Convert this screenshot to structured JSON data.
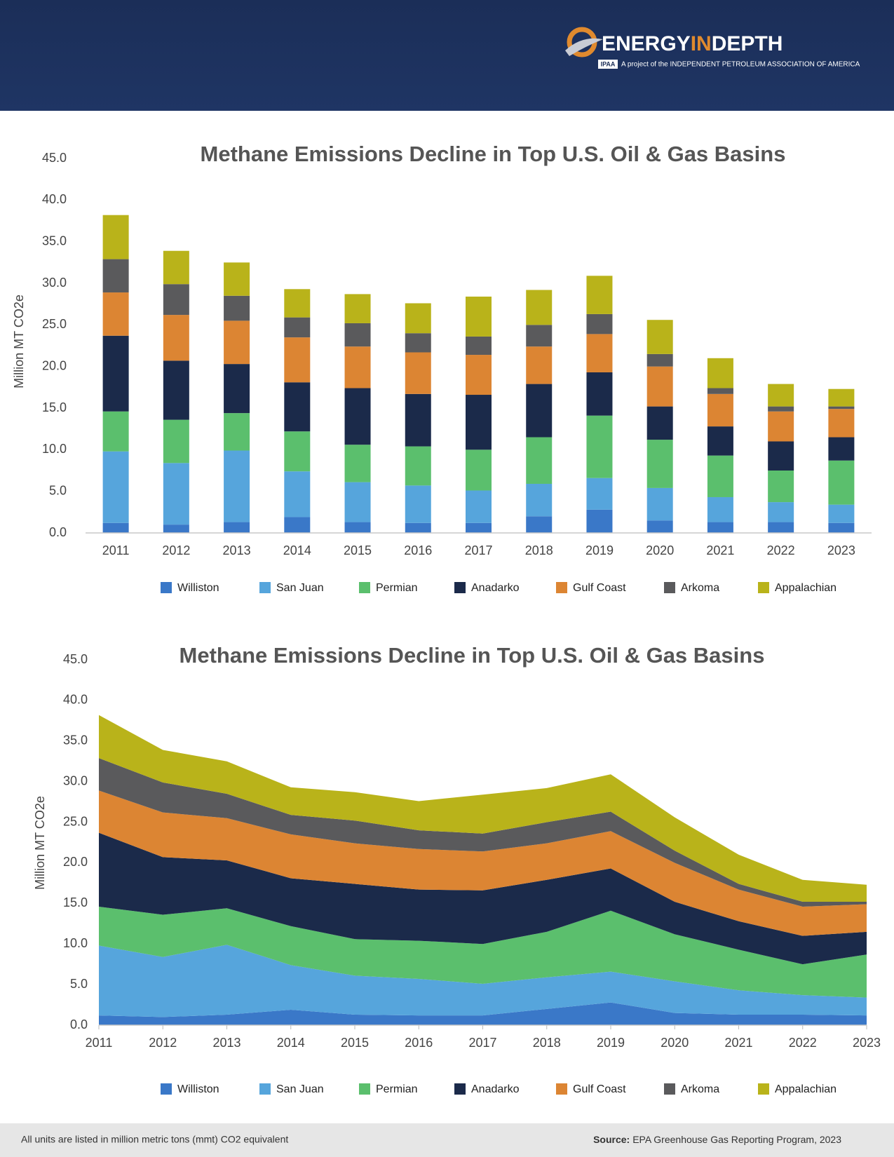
{
  "header": {
    "logo": [
      "ENERGY",
      "IN",
      "DEPTH"
    ],
    "tagline": "A project of the INDEPENDENT PETROLEUM ASSOCIATION OF AMERICA",
    "badge": "IPAA"
  },
  "chart_data": [
    {
      "type": "bar",
      "title": "Methane Emissions Decline in Top U.S. Oil & Gas Basins",
      "y_label": "Million MT CO2e",
      "categories": [
        "2011",
        "2012",
        "2013",
        "2014",
        "2015",
        "2016",
        "2017",
        "2018",
        "2019",
        "2020",
        "2021",
        "2022",
        "2023"
      ],
      "series": [
        {
          "name": "Williston",
          "color": "#3a78c8",
          "values": [
            1.2,
            1.0,
            1.3,
            1.9,
            1.3,
            1.2,
            1.2,
            2.0,
            2.8,
            1.5,
            1.3,
            1.3,
            1.2
          ]
        },
        {
          "name": "San Juan",
          "color": "#56a5dc",
          "values": [
            8.6,
            7.4,
            8.6,
            5.5,
            4.8,
            4.5,
            3.9,
            3.9,
            3.8,
            3.9,
            3.0,
            2.4,
            2.2
          ]
        },
        {
          "name": "Permian",
          "color": "#5bbf6d",
          "values": [
            4.8,
            5.2,
            4.5,
            4.8,
            4.5,
            4.7,
            4.9,
            5.6,
            7.5,
            5.8,
            5.0,
            3.8,
            5.3
          ]
        },
        {
          "name": "Anadarko",
          "color": "#1b2a4a",
          "values": [
            9.1,
            7.1,
            5.9,
            5.9,
            6.8,
            6.3,
            6.6,
            6.4,
            5.2,
            4.0,
            3.5,
            3.5,
            2.8
          ]
        },
        {
          "name": "Gulf Coast",
          "color": "#dc8533",
          "values": [
            5.2,
            5.5,
            5.2,
            5.4,
            5.0,
            5.0,
            4.8,
            4.5,
            4.6,
            4.8,
            3.9,
            3.6,
            3.4
          ]
        },
        {
          "name": "Arkoma",
          "color": "#5a5a5c",
          "values": [
            4.0,
            3.7,
            3.0,
            2.4,
            2.8,
            2.3,
            2.2,
            2.6,
            2.4,
            1.5,
            0.7,
            0.6,
            0.3
          ]
        },
        {
          "name": "Appalachian",
          "color": "#b9b31a",
          "values": [
            5.3,
            4.0,
            4.0,
            3.4,
            3.5,
            3.6,
            4.8,
            4.2,
            4.6,
            4.1,
            3.6,
            2.7,
            2.1
          ]
        }
      ],
      "ylim": [
        0,
        45
      ],
      "yticks": [
        {
          "value": 0,
          "label": "0.0"
        },
        {
          "value": 5,
          "label": "5.0"
        },
        {
          "value": 10,
          "label": "10.0"
        },
        {
          "value": 15,
          "label": "15.0"
        },
        {
          "value": 20,
          "label": "20.0"
        },
        {
          "value": 25,
          "label": "25.0"
        },
        {
          "value": 30,
          "label": "30.0"
        },
        {
          "value": 35,
          "label": "35.0"
        },
        {
          "value": 40,
          "label": "40.0"
        },
        {
          "value": 45,
          "label": "45.0"
        }
      ],
      "grid": false,
      "legend": "bottom"
    },
    {
      "type": "area",
      "title": "Methane Emissions Decline in Top U.S. Oil & Gas Basins",
      "y_label": "Million MT CO2e",
      "categories": [
        "2011",
        "2012",
        "2013",
        "2014",
        "2015",
        "2016",
        "2017",
        "2018",
        "2019",
        "2020",
        "2021",
        "2022",
        "2023"
      ],
      "series": [
        {
          "name": "Williston",
          "color": "#3a78c8",
          "values": [
            1.2,
            1.0,
            1.3,
            1.9,
            1.3,
            1.2,
            1.2,
            2.0,
            2.8,
            1.5,
            1.3,
            1.3,
            1.2
          ]
        },
        {
          "name": "San Juan",
          "color": "#56a5dc",
          "values": [
            8.6,
            7.4,
            8.6,
            5.5,
            4.8,
            4.5,
            3.9,
            3.9,
            3.8,
            3.9,
            3.0,
            2.4,
            2.2
          ]
        },
        {
          "name": "Permian",
          "color": "#5bbf6d",
          "values": [
            4.8,
            5.2,
            4.5,
            4.8,
            4.5,
            4.7,
            4.9,
            5.6,
            7.5,
            5.8,
            5.0,
            3.8,
            5.3
          ]
        },
        {
          "name": "Anadarko",
          "color": "#1b2a4a",
          "values": [
            9.1,
            7.1,
            5.9,
            5.9,
            6.8,
            6.3,
            6.6,
            6.4,
            5.2,
            4.0,
            3.5,
            3.5,
            2.8
          ]
        },
        {
          "name": "Gulf Coast",
          "color": "#dc8533",
          "values": [
            5.2,
            5.5,
            5.2,
            5.4,
            5.0,
            5.0,
            4.8,
            4.5,
            4.6,
            4.8,
            3.9,
            3.6,
            3.4
          ]
        },
        {
          "name": "Arkoma",
          "color": "#5a5a5c",
          "values": [
            4.0,
            3.7,
            3.0,
            2.4,
            2.8,
            2.3,
            2.2,
            2.6,
            2.4,
            1.5,
            0.7,
            0.6,
            0.3
          ]
        },
        {
          "name": "Appalachian",
          "color": "#b9b31a",
          "values": [
            5.3,
            4.0,
            4.0,
            3.4,
            3.5,
            3.6,
            4.8,
            4.2,
            4.6,
            4.1,
            3.6,
            2.7,
            2.1
          ]
        }
      ],
      "ylim": [
        0,
        45
      ],
      "yticks": [
        {
          "value": 0,
          "label": "0.0"
        },
        {
          "value": 5,
          "label": "5.0"
        },
        {
          "value": 10,
          "label": "10.0"
        },
        {
          "value": 15,
          "label": "15.0"
        },
        {
          "value": 20,
          "label": "20.0"
        },
        {
          "value": 25,
          "label": "25.0"
        },
        {
          "value": 30,
          "label": "30.0"
        },
        {
          "value": 35,
          "label": "35.0"
        },
        {
          "value": 40,
          "label": "40.0"
        },
        {
          "value": 45,
          "label": "45.0"
        }
      ],
      "grid": false,
      "legend": "bottom"
    }
  ],
  "footer": {
    "note": "All units are listed in million metric tons (mmt) CO2 equivalent",
    "source_label": "Source:",
    "source": "EPA Greenhouse Gas Reporting Program, 2023"
  }
}
